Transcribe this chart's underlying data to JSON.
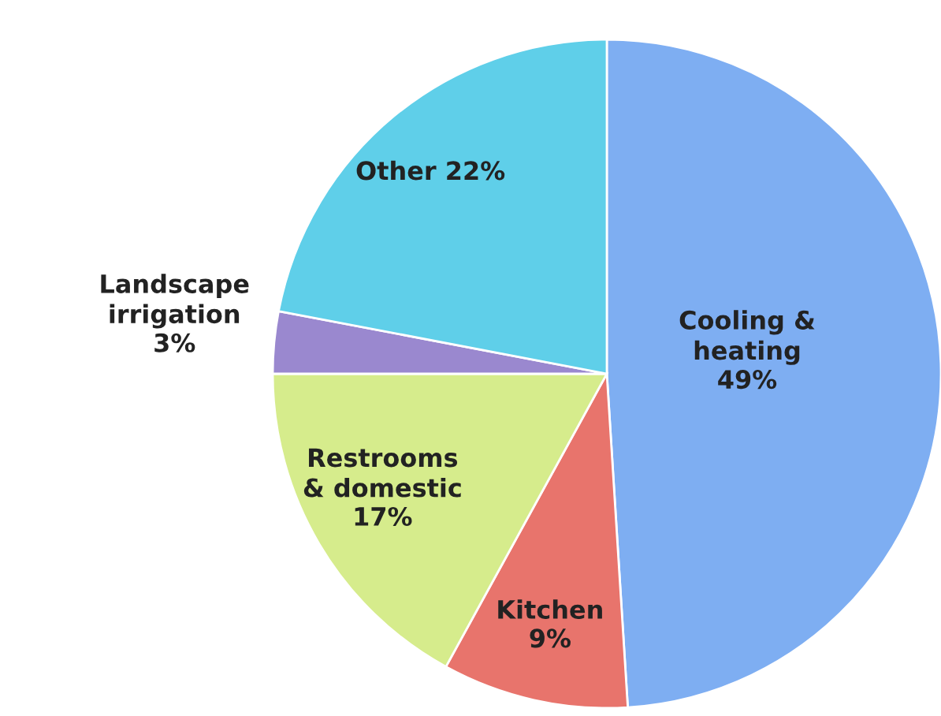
{
  "chart_data": {
    "type": "pie",
    "categories": [
      "Cooling &\nheating",
      "Kitchen",
      "Restrooms\n& domestic",
      "Landscape\nirrigation",
      "Other"
    ],
    "values": [
      49,
      9,
      17,
      3,
      22
    ],
    "colors": [
      "#7eaef2",
      "#e8746c",
      "#d6ec8c",
      "#9a88cf",
      "#5fcfe9"
    ],
    "value_labels": [
      "49%",
      "9%",
      "17%",
      "3%",
      "22%"
    ],
    "legend": false
  }
}
